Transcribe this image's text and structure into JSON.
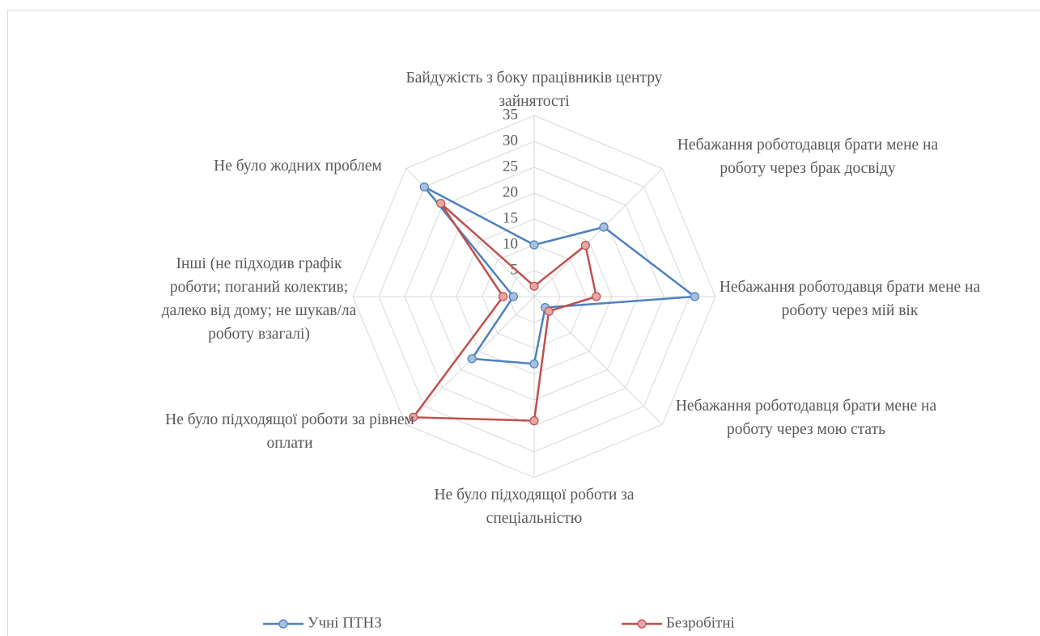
{
  "chart_data": {
    "type": "radar",
    "categories": [
      "Байдужість з боку працівників центру зайнятості",
      "Небажання роботодавця брати мене на роботу через брак досвіду",
      "Небажання роботодавця брати мене на роботу через мій вік",
      "Небажання роботодавця брати мене на роботу через мою стать",
      "Не було підходящої роботи за спеціальністю",
      "Не було підходящої роботи за рівнем оплати",
      "Інші (не підходив графік роботи; поганий колектив; далеко від дому; не шукав/ла роботу взагалі)",
      "Не було жодних проблем"
    ],
    "series": [
      {
        "name": "Учні ПТНЗ",
        "color": "#4f81bd",
        "values": [
          10,
          19,
          31,
          3,
          13,
          17,
          4,
          30
        ]
      },
      {
        "name": "Безробітні",
        "color": "#c0504d",
        "values": [
          2,
          14,
          12,
          4,
          24,
          33,
          6,
          25.5
        ]
      }
    ],
    "ylim": [
      0,
      35
    ],
    "yticks": [
      0,
      5,
      10,
      15,
      20,
      25,
      30,
      35
    ],
    "grid": true,
    "legend": "bottom"
  }
}
